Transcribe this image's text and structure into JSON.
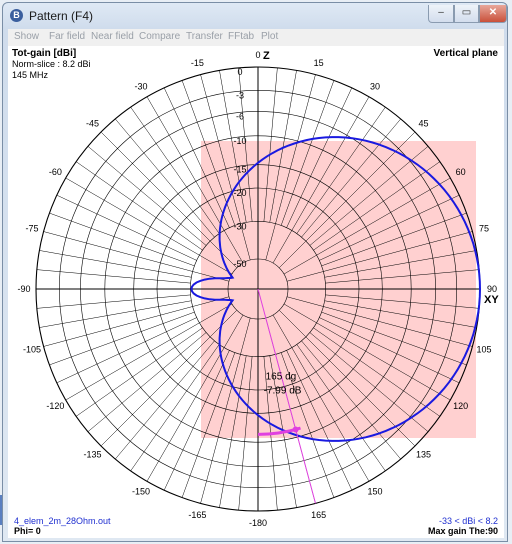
{
  "window": {
    "title": "Pattern   (F4)",
    "app_icon_glyph": "B",
    "min_glyph": "–",
    "max_glyph": "▭",
    "close_glyph": "✕"
  },
  "menu": {
    "items": [
      "Show",
      "Far field",
      "Near field",
      "Compare",
      "Transfer",
      "FFtab",
      "Plot"
    ]
  },
  "plot": {
    "gain_title": "Tot-gain [dBi]",
    "norm_slice": "Norm-slice : 8.2 dBi",
    "frequency": "145 MHz",
    "plane": "Vertical plane",
    "filename": "4_elem_2m_28Ohm.out",
    "phi": "Phi= 0",
    "dbi_range": "-33 < dBi < 8.2",
    "max_gain": "Max gain The:90",
    "cursor_angle": "165 dg",
    "cursor_db": "-7.99 dB",
    "z_label": "Z",
    "xy_label": "XY",
    "angle_labels": [
      "0",
      "15",
      "30",
      "45",
      "60",
      "75",
      "90",
      "105",
      "120",
      "135",
      "150",
      "165",
      "-180",
      "-165",
      "-150",
      "-135",
      "-120",
      "-105",
      "-90",
      "-75",
      "-60",
      "-45",
      "-30",
      "-15"
    ],
    "ring_labels": [
      "0",
      "-3",
      "-6",
      "-10",
      "-15",
      "-20",
      "-30",
      "-50"
    ],
    "colors": {
      "pattern": "#1a1ae0",
      "cursor": "#e040e0",
      "shade": "#ffc8c8",
      "grid": "#000000"
    }
  }
}
